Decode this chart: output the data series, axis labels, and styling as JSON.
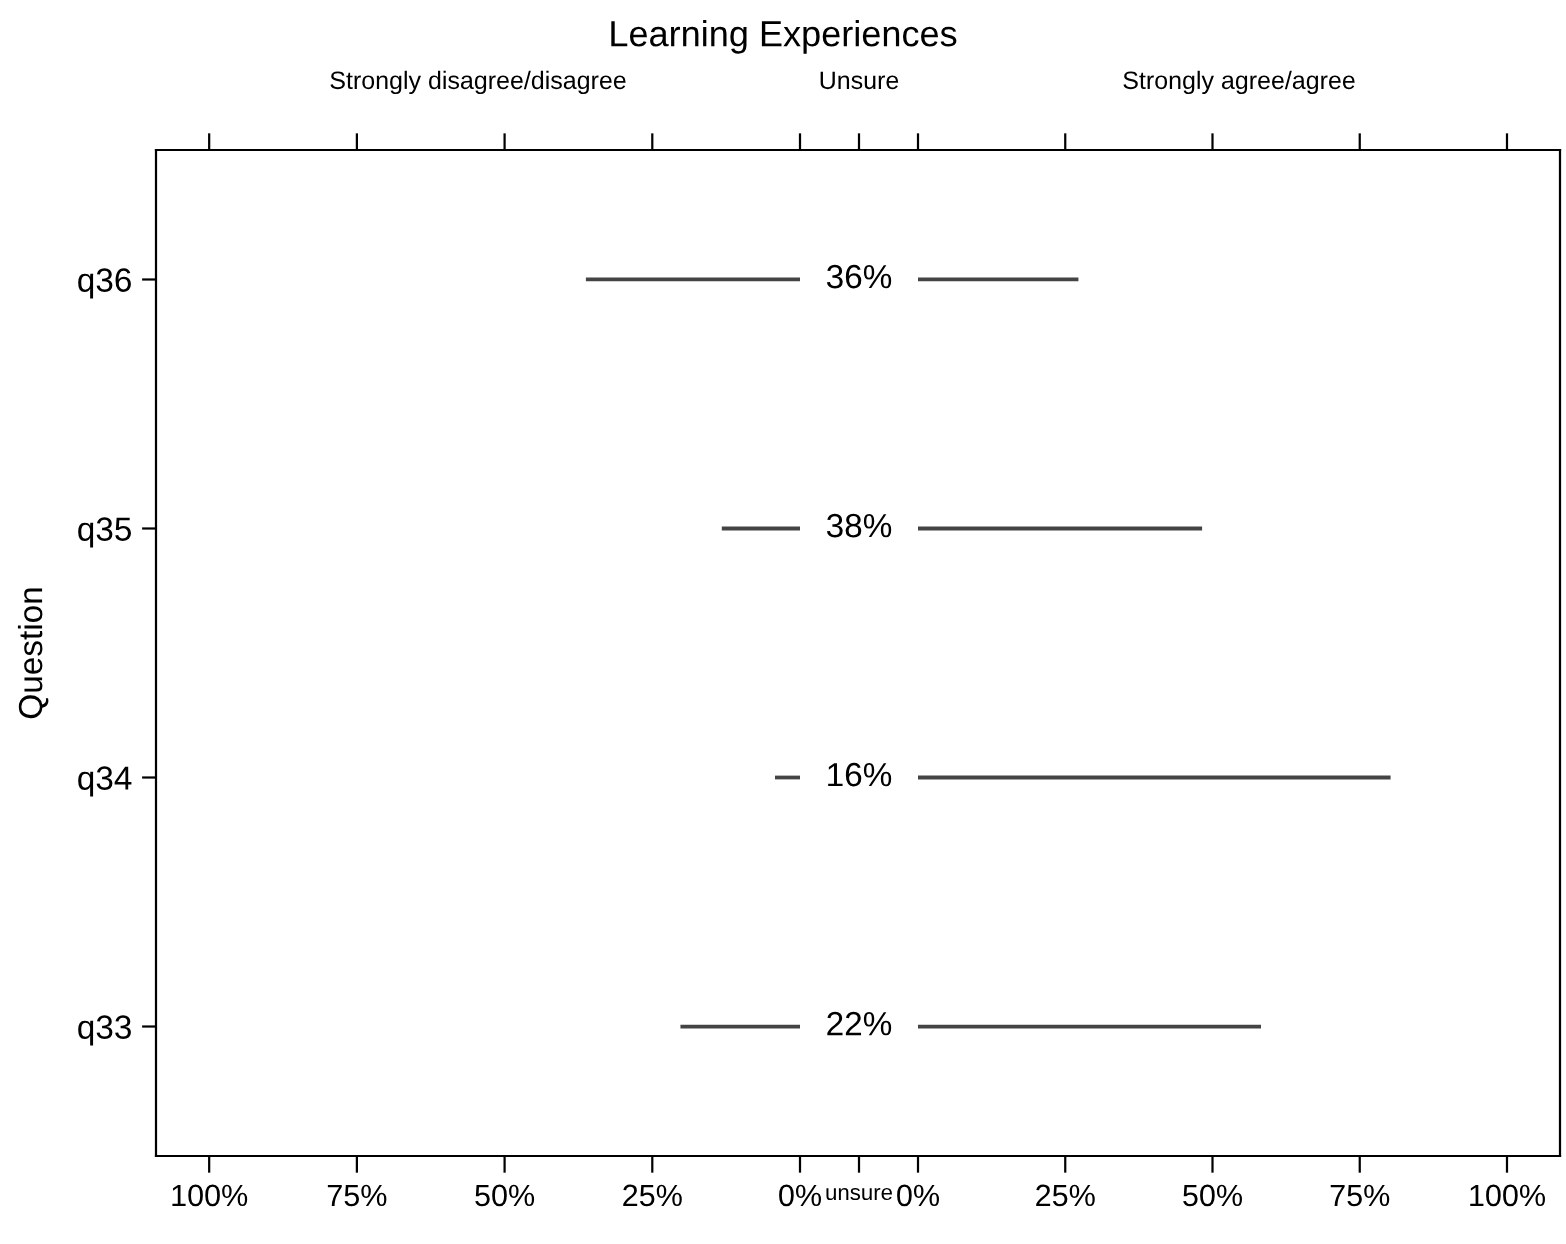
{
  "chart_data": [
    {
      "type": "bar",
      "orientation": "horizontal",
      "title": "Learning Experiences",
      "subtitle": "Strongly disagree/disagree",
      "ylabel": "Question",
      "categories": [
        "q36",
        "q35",
        "q34",
        "q33"
      ],
      "series": [
        {
          "color": "#444444",
          "values": [
            36,
            13,
            4,
            20
          ]
        }
      ],
      "xlim": [
        109,
        0
      ],
      "xticks": [
        {
          "value": 100,
          "label": "100%"
        },
        {
          "value": 75,
          "label": "75%"
        },
        {
          "value": 50,
          "label": "50%"
        },
        {
          "value": 25,
          "label": "25%"
        },
        {
          "value": 0,
          "label": "0%"
        }
      ],
      "grid": false,
      "legend": false
    },
    {
      "type": "other",
      "subtitle": "Unsure",
      "xlabel": "unsure",
      "annotations": [
        "36%",
        "38%",
        "16%",
        "22%"
      ]
    },
    {
      "type": "bar",
      "orientation": "horizontal",
      "subtitle": "Strongly agree/agree",
      "series": [
        {
          "color": "#444444",
          "values": [
            27,
            48,
            80,
            58
          ]
        }
      ],
      "xlim": [
        0,
        109
      ],
      "xticks": [
        {
          "value": 0,
          "label": "0%"
        },
        {
          "value": 25,
          "label": "25%"
        },
        {
          "value": 50,
          "label": "50%"
        },
        {
          "value": 75,
          "label": "75%"
        },
        {
          "value": 100,
          "label": "100%"
        }
      ],
      "tick_labels": "x",
      "grid": false,
      "legend": false
    }
  ]
}
